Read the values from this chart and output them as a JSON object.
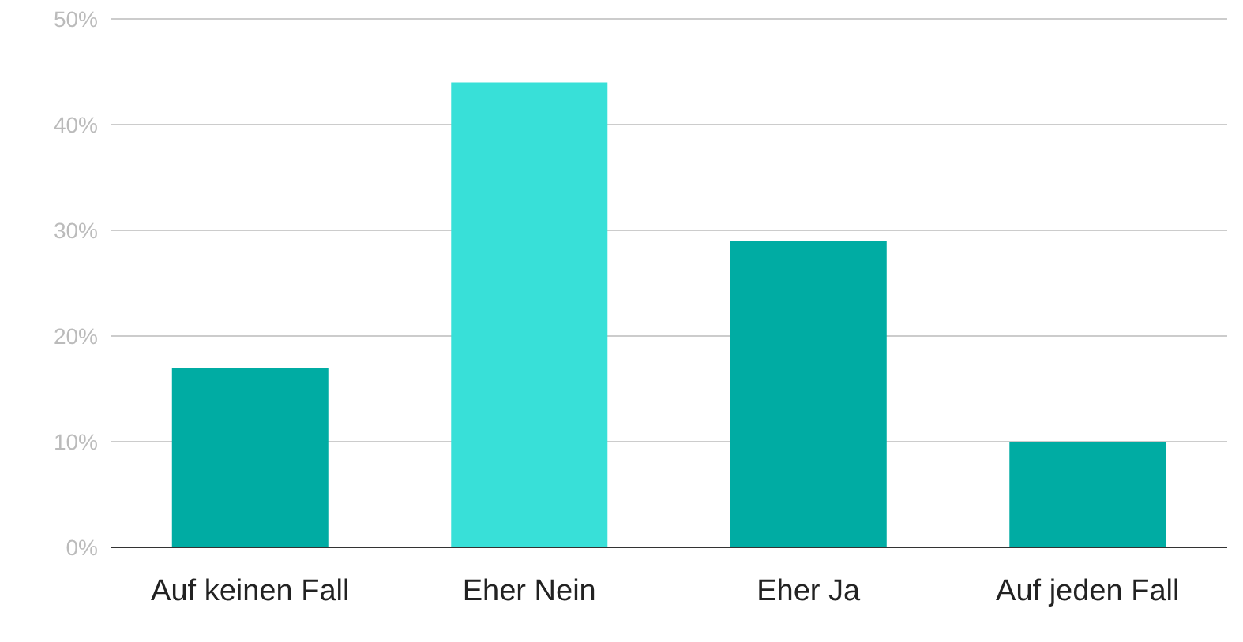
{
  "chart_data": {
    "type": "bar",
    "categories": [
      "Auf keinen Fall",
      "Eher Nein",
      "Eher Ja",
      "Auf jeden Fall"
    ],
    "values": [
      17,
      44,
      29,
      10
    ],
    "colors": [
      "#00aca3",
      "#38e0d8",
      "#00aca3",
      "#00aca3"
    ],
    "ylim": [
      0,
      50
    ],
    "yticks": [
      {
        "value": 0,
        "label": "0%"
      },
      {
        "value": 10,
        "label": "10%"
      },
      {
        "value": 20,
        "label": "20%"
      },
      {
        "value": 30,
        "label": "30%"
      },
      {
        "value": 40,
        "label": "40%"
      },
      {
        "value": 50,
        "label": "50%"
      }
    ],
    "grid": "y"
  }
}
